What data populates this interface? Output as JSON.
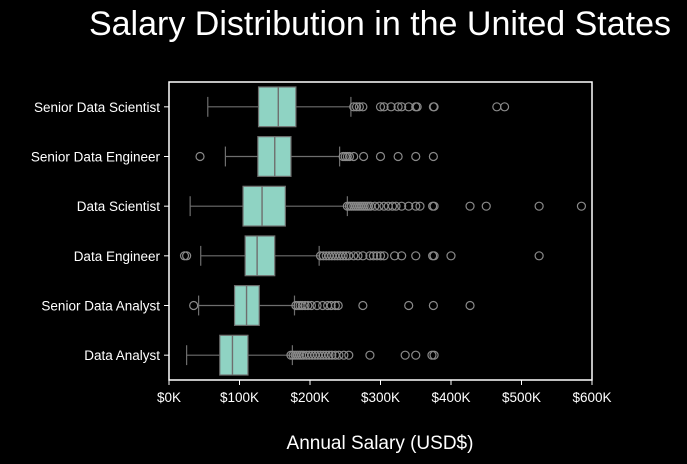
{
  "chart_data": {
    "type": "boxplot",
    "title": "Salary Distribution in the United States",
    "xlabel": "Annual Salary (USD$)",
    "ylabel": "",
    "xlim": [
      0,
      600000
    ],
    "xticks": [
      {
        "value": 0,
        "label": "$0K"
      },
      {
        "value": 100000,
        "label": "$100K"
      },
      {
        "value": 200000,
        "label": "$200K"
      },
      {
        "value": 300000,
        "label": "$300K"
      },
      {
        "value": 400000,
        "label": "$400K"
      },
      {
        "value": 500000,
        "label": "$500K"
      },
      {
        "value": 600000,
        "label": "$600K"
      }
    ],
    "grid": false,
    "colors": {
      "box": "#8fd3c3",
      "line": "#6e6e6e",
      "flier": "#8a8a8a",
      "frame": "#ffffff",
      "background": "#000000"
    },
    "categories": [
      "Senior Data Scientist",
      "Senior Data Engineer",
      "Data Scientist",
      "Data Engineer",
      "Senior Data Analyst",
      "Data Analyst"
    ],
    "boxes": [
      {
        "category": "Senior Data Scientist",
        "whislo": 55000,
        "q1": 127000,
        "med": 155000,
        "q3": 180000,
        "whishi": 258000,
        "fliers": [
          262000,
          266000,
          270000,
          275000,
          300000,
          305000,
          315000,
          325000,
          330000,
          340000,
          350000,
          352000,
          375000,
          376000,
          465000,
          476000
        ]
      },
      {
        "category": "Senior Data Engineer",
        "whislo": 80000,
        "q1": 126000,
        "med": 150000,
        "q3": 173000,
        "whishi": 242000,
        "fliers": [
          44000,
          247000,
          250000,
          253000,
          256000,
          262000,
          276000,
          300000,
          325000,
          350000,
          375000
        ]
      },
      {
        "category": "Data Scientist",
        "whislo": 30000,
        "q1": 105000,
        "med": 132000,
        "q3": 165000,
        "whishi": 253000,
        "fliers": [
          253000,
          256000,
          259000,
          262000,
          265000,
          268000,
          271000,
          274000,
          277000,
          280000,
          283000,
          286000,
          292000,
          298000,
          305000,
          311000,
          317000,
          322000,
          330000,
          340000,
          350000,
          356000,
          374000,
          376000,
          427000,
          450000,
          525000,
          585000
        ]
      },
      {
        "category": "Data Engineer",
        "whislo": 45000,
        "q1": 108000,
        "med": 125000,
        "q3": 150000,
        "whishi": 213000,
        "fliers": [
          22000,
          25000,
          215000,
          219000,
          223000,
          227000,
          231000,
          235000,
          239000,
          243000,
          247000,
          251000,
          255000,
          262000,
          268000,
          275000,
          285000,
          290000,
          295000,
          300000,
          305000,
          320000,
          330000,
          350000,
          374000,
          376000,
          400000,
          525000
        ]
      },
      {
        "category": "Senior Data Analyst",
        "whislo": 42000,
        "q1": 93000,
        "med": 110000,
        "q3": 128000,
        "whishi": 178000,
        "fliers": [
          35000,
          180000,
          183000,
          186000,
          189000,
          193000,
          197000,
          202000,
          210000,
          218000,
          225000,
          230000,
          236000,
          240000,
          275000,
          340000,
          375000,
          427000
        ]
      },
      {
        "category": "Data Analyst",
        "whislo": 25000,
        "q1": 72000,
        "med": 90000,
        "q3": 112000,
        "whishi": 175000,
        "fliers": [
          173000,
          176000,
          179000,
          182000,
          185000,
          188000,
          191000,
          195000,
          199000,
          203000,
          207000,
          211000,
          215000,
          219000,
          223000,
          227000,
          231000,
          236000,
          241000,
          248000,
          255000,
          285000,
          335000,
          350000,
          373000,
          376000
        ]
      }
    ]
  }
}
